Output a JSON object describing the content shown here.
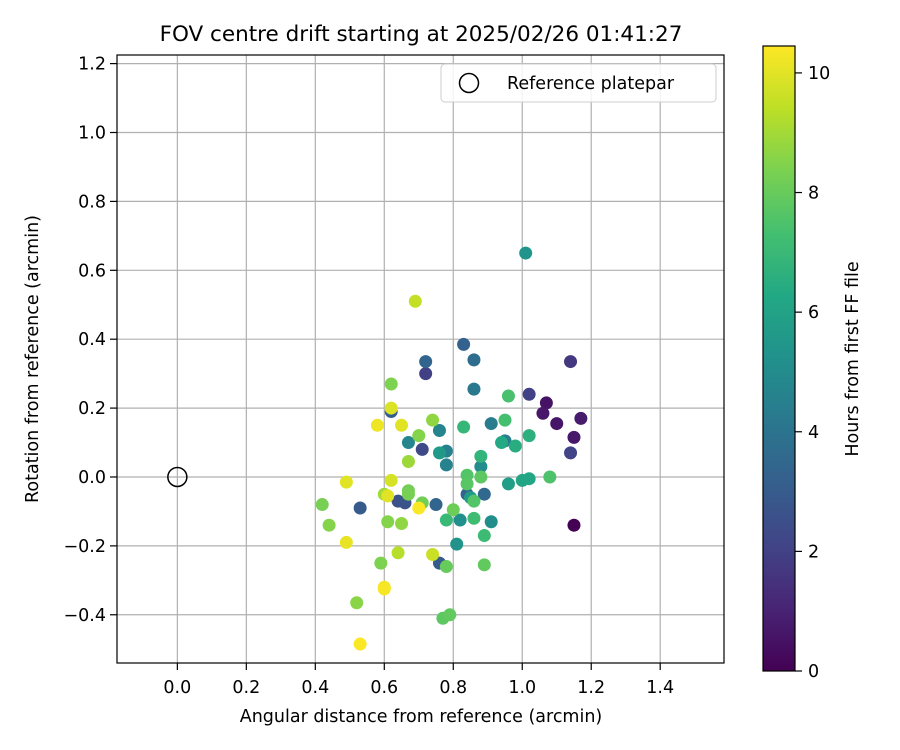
{
  "chart_data": {
    "type": "scatter",
    "title": "FOV centre drift starting at 2025/02/26 01:41:27",
    "xlabel": "Angular distance from reference (arcmin)",
    "ylabel": "Rotation from reference (arcmin)",
    "xlim": [
      -0.175,
      1.585
    ],
    "ylim": [
      -0.54,
      1.225
    ],
    "xticks": [
      "0.0",
      "0.2",
      "0.4",
      "0.6",
      "0.8",
      "1.0",
      "1.2",
      "1.4"
    ],
    "yticks": [
      "−0.4",
      "−0.2",
      "0.0",
      "0.2",
      "0.4",
      "0.6",
      "0.8",
      "1.0",
      "1.2"
    ],
    "grid": true,
    "legend": {
      "placement": "top-right",
      "entries": [
        {
          "label": "Reference platepar",
          "marker": "open-circle",
          "x": 0.0,
          "y": 0.0
        }
      ]
    },
    "colorbar": {
      "label": "Hours from first FF file",
      "min": 0,
      "max": 10.45,
      "ticks": [
        "0",
        "2",
        "4",
        "6",
        "8",
        "10"
      ],
      "colormap": "viridis"
    },
    "points": [
      {
        "x": 1.15,
        "y": -0.14,
        "h": 0.0
      },
      {
        "x": 1.07,
        "y": 0.215,
        "h": 0.5
      },
      {
        "x": 1.06,
        "y": 0.185,
        "h": 0.7
      },
      {
        "x": 1.1,
        "y": 0.155,
        "h": 0.6
      },
      {
        "x": 1.17,
        "y": 0.17,
        "h": 0.8
      },
      {
        "x": 1.15,
        "y": 0.115,
        "h": 0.7
      },
      {
        "x": 1.14,
        "y": 0.335,
        "h": 1.7
      },
      {
        "x": 1.14,
        "y": 0.07,
        "h": 2.1
      },
      {
        "x": 1.02,
        "y": 0.24,
        "h": 2.0
      },
      {
        "x": 0.72,
        "y": 0.3,
        "h": 2.0
      },
      {
        "x": 0.71,
        "y": 0.08,
        "h": 2.3
      },
      {
        "x": 0.64,
        "y": -0.07,
        "h": 2.6
      },
      {
        "x": 0.66,
        "y": -0.075,
        "h": 2.7
      },
      {
        "x": 0.53,
        "y": -0.09,
        "h": 3.0
      },
      {
        "x": 0.62,
        "y": 0.19,
        "h": 3.1
      },
      {
        "x": 0.76,
        "y": -0.25,
        "h": 3.0
      },
      {
        "x": 0.83,
        "y": 0.385,
        "h": 3.2
      },
      {
        "x": 0.72,
        "y": 0.335,
        "h": 3.4
      },
      {
        "x": 0.75,
        "y": -0.08,
        "h": 3.4
      },
      {
        "x": 0.84,
        "y": -0.05,
        "h": 3.4
      },
      {
        "x": 0.89,
        "y": -0.05,
        "h": 3.5
      },
      {
        "x": 0.86,
        "y": 0.34,
        "h": 3.7
      },
      {
        "x": 0.86,
        "y": 0.255,
        "h": 4.2
      },
      {
        "x": 0.91,
        "y": 0.155,
        "h": 4.3
      },
      {
        "x": 0.95,
        "y": 0.105,
        "h": 4.3
      },
      {
        "x": 0.78,
        "y": 0.075,
        "h": 4.5
      },
      {
        "x": 0.78,
        "y": 0.035,
        "h": 4.6
      },
      {
        "x": 0.76,
        "y": 0.135,
        "h": 4.7
      },
      {
        "x": 0.67,
        "y": 0.1,
        "h": 4.8
      },
      {
        "x": 0.88,
        "y": 0.03,
        "h": 5.0
      },
      {
        "x": 0.91,
        "y": -0.13,
        "h": 5.1
      },
      {
        "x": 0.82,
        "y": -0.125,
        "h": 5.2
      },
      {
        "x": 0.81,
        "y": -0.195,
        "h": 5.3
      },
      {
        "x": 1.01,
        "y": 0.65,
        "h": 5.4
      },
      {
        "x": 0.76,
        "y": 0.07,
        "h": 5.6
      },
      {
        "x": 0.85,
        "y": -0.06,
        "h": 5.7
      },
      {
        "x": 0.96,
        "y": -0.02,
        "h": 5.8
      },
      {
        "x": 1.0,
        "y": -0.01,
        "h": 6.1
      },
      {
        "x": 1.02,
        "y": -0.005,
        "h": 6.2
      },
      {
        "x": 0.94,
        "y": 0.1,
        "h": 6.3
      },
      {
        "x": 0.98,
        "y": 0.09,
        "h": 6.5
      },
      {
        "x": 1.02,
        "y": 0.12,
        "h": 6.6
      },
      {
        "x": 0.88,
        "y": 0.06,
        "h": 6.8
      },
      {
        "x": 0.83,
        "y": 0.145,
        "h": 6.9
      },
      {
        "x": 0.78,
        "y": -0.125,
        "h": 7.0
      },
      {
        "x": 0.89,
        "y": -0.17,
        "h": 7.1
      },
      {
        "x": 0.86,
        "y": -0.12,
        "h": 7.2
      },
      {
        "x": 0.95,
        "y": 0.165,
        "h": 7.3
      },
      {
        "x": 0.96,
        "y": 0.235,
        "h": 7.4
      },
      {
        "x": 1.08,
        "y": 0.0,
        "h": 7.5
      },
      {
        "x": 0.84,
        "y": 0.005,
        "h": 7.6
      },
      {
        "x": 0.84,
        "y": -0.02,
        "h": 7.7
      },
      {
        "x": 0.88,
        "y": 0.0,
        "h": 7.8
      },
      {
        "x": 0.86,
        "y": -0.07,
        "h": 7.6
      },
      {
        "x": 0.77,
        "y": -0.41,
        "h": 7.8
      },
      {
        "x": 0.79,
        "y": -0.4,
        "h": 7.9
      },
      {
        "x": 0.89,
        "y": -0.255,
        "h": 7.9
      },
      {
        "x": 0.78,
        "y": -0.26,
        "h": 8.0
      },
      {
        "x": 0.8,
        "y": -0.095,
        "h": 8.1
      },
      {
        "x": 0.71,
        "y": -0.075,
        "h": 8.2
      },
      {
        "x": 0.67,
        "y": -0.04,
        "h": 8.2
      },
      {
        "x": 0.67,
        "y": -0.05,
        "h": 8.3
      },
      {
        "x": 0.62,
        "y": 0.27,
        "h": 8.4
      },
      {
        "x": 0.7,
        "y": 0.12,
        "h": 8.5
      },
      {
        "x": 0.74,
        "y": 0.165,
        "h": 8.7
      },
      {
        "x": 0.61,
        "y": -0.13,
        "h": 8.5
      },
      {
        "x": 0.59,
        "y": -0.25,
        "h": 8.4
      },
      {
        "x": 0.42,
        "y": -0.08,
        "h": 8.3
      },
      {
        "x": 0.44,
        "y": -0.14,
        "h": 8.5
      },
      {
        "x": 0.52,
        "y": -0.365,
        "h": 8.6
      },
      {
        "x": 0.65,
        "y": -0.135,
        "h": 8.7
      },
      {
        "x": 0.67,
        "y": 0.045,
        "h": 8.9
      },
      {
        "x": 0.6,
        "y": -0.05,
        "h": 9.0
      },
      {
        "x": 0.64,
        "y": -0.22,
        "h": 9.3
      },
      {
        "x": 0.69,
        "y": 0.51,
        "h": 9.5
      },
      {
        "x": 0.74,
        "y": -0.225,
        "h": 9.6
      },
      {
        "x": 0.62,
        "y": -0.01,
        "h": 9.8
      },
      {
        "x": 0.62,
        "y": 0.2,
        "h": 9.9
      },
      {
        "x": 0.61,
        "y": -0.055,
        "h": 10.0
      },
      {
        "x": 0.49,
        "y": -0.015,
        "h": 10.0
      },
      {
        "x": 0.49,
        "y": -0.19,
        "h": 10.1
      },
      {
        "x": 0.58,
        "y": 0.15,
        "h": 10.2
      },
      {
        "x": 0.65,
        "y": 0.15,
        "h": 10.0
      },
      {
        "x": 0.6,
        "y": -0.32,
        "h": 10.3
      },
      {
        "x": 0.6,
        "y": -0.325,
        "h": 10.35
      },
      {
        "x": 0.53,
        "y": -0.485,
        "h": 10.4
      },
      {
        "x": 0.7,
        "y": -0.09,
        "h": 10.4
      }
    ]
  }
}
